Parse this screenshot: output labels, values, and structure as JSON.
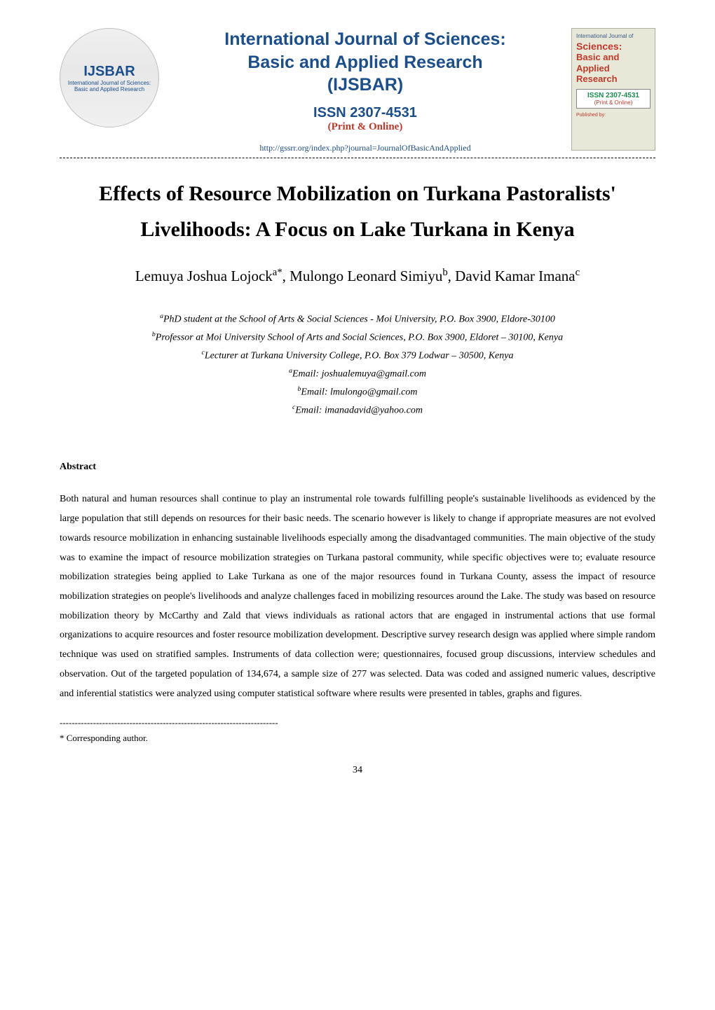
{
  "header": {
    "logo_left": {
      "title": "IJSBAR",
      "subtitle1": "International Journal of Sciences:",
      "subtitle2": "Basic and Applied Research"
    },
    "journal_title_line1": "International Journal of Sciences:",
    "journal_title_line2": "Basic and Applied Research",
    "journal_title_line3": "(IJSBAR)",
    "issn": "ISSN 2307-4531",
    "print_online": "(Print & Online)",
    "url": "http://gssrr.org/index.php?journal=JournalOfBasicAndApplied",
    "logo_right": {
      "top": "International Journal of",
      "sciences": "Sciences:",
      "basic": "Basic and Applied",
      "research": "Research",
      "issn": "ISSN 2307-4531",
      "po": "(Print & Online)",
      "published": "Published by:"
    }
  },
  "paper": {
    "title": "Effects of Resource Mobilization on Turkana Pastoralists' Livelihoods: A Focus on Lake Turkana in Kenya",
    "authors_html": "Lemuya Joshua Lojock<sup>a*</sup>, Mulongo Leonard Simiyu<sup>b</sup>, David Kamar Imana<sup>c</sup>",
    "affiliations": {
      "a": "PhD student at the School of Arts & Social Sciences - Moi University, P.O. Box 3900, Eldore-30100",
      "b": "Professor at  Moi University School of Arts and Social Sciences, P.O. Box 3900, Eldoret – 30100, Kenya",
      "c": "Lecturer at Turkana University College, P.O. Box 379  Lodwar – 30500, Kenya",
      "email_a": "Email: joshualemuya@gmail.com",
      "email_b": "Email: lmulongo@gmail.com",
      "email_c": "Email: imanadavid@yahoo.com"
    },
    "abstract_heading": "Abstract",
    "abstract": "Both natural and human resources shall continue to play an instrumental role towards   fulfilling people's sustainable livelihoods as evidenced by the large population that still depends on resources for their basic needs. The scenario however is likely to change if appropriate measures are not evolved towards resource mobilization in enhancing sustainable livelihoods   especially among the disadvantaged communities. The main objective of the study was to examine the impact of resource mobilization strategies on Turkana pastoral community, while specific objectives were to; evaluate resource mobilization strategies being applied to Lake Turkana as one of the major resources found in Turkana County, assess the impact of resource mobilization strategies on people's livelihoods and analyze challenges faced in mobilizing resources around the Lake. The study was based on resource mobilization theory by McCarthy and Zald that views individuals as rational actors that are engaged in instrumental actions that use formal organizations to acquire resources and foster resource mobilization development. Descriptive survey research design was applied where simple random technique was used on stratified samples. Instruments of data collection were; questionnaires, focused group discussions, interview schedules and observation. Out of the targeted population of 134,674, a sample size of 277 was selected. Data was coded and assigned numeric values, descriptive and inferential statistics were analyzed using computer statistical software where results were presented in tables, graphs and figures."
  },
  "footer": {
    "separator": "------------------------------------------------------------------------",
    "corresponding": "* Corresponding author.",
    "page_number": "34"
  },
  "colors": {
    "link_blue": "#1a4e8c",
    "red": "#c0392b",
    "green": "#1a8c4e",
    "text": "#000000",
    "background": "#ffffff"
  }
}
